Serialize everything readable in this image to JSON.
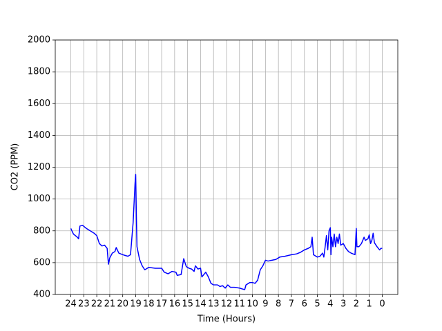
{
  "chart_data": {
    "type": "line",
    "x_label": "Time (Hours)",
    "y_label": "CO2 (PPM)",
    "xlim": [
      25.2,
      -1.2
    ],
    "ylim": [
      400,
      2000
    ],
    "xticks": [
      24,
      23,
      22,
      21,
      20,
      19,
      18,
      17,
      16,
      15,
      14,
      13,
      12,
      11,
      10,
      9,
      8,
      7,
      6,
      5,
      4,
      3,
      2,
      1,
      0
    ],
    "yticks": [
      400,
      600,
      800,
      1000,
      1200,
      1400,
      1600,
      1800,
      2000
    ],
    "grid": true,
    "series": [
      {
        "color": "#0000ff",
        "x": [
          24,
          23.8,
          23.5,
          23.4,
          23.3,
          23.1,
          22.8,
          22.5,
          22.2,
          22.0,
          21.8,
          21.6,
          21.4,
          21.2,
          21.1,
          21.0,
          20.8,
          20.6,
          20.5,
          20.3,
          20.0,
          19.8,
          19.6,
          19.4,
          19.3,
          19.2,
          19.05,
          19.0,
          18.95,
          18.9,
          18.7,
          18.5,
          18.3,
          18.0,
          17.5,
          17.0,
          16.8,
          16.5,
          16.2,
          15.9,
          15.8,
          15.5,
          15.3,
          15.1,
          14.9,
          14.7,
          14.5,
          14.4,
          14.2,
          14.0,
          13.9,
          13.6,
          13.4,
          13.2,
          13.0,
          12.7,
          12.5,
          12.3,
          12.1,
          11.9,
          11.7,
          11.4,
          11.0,
          10.6,
          10.5,
          10.2,
          10.0,
          9.8,
          9.6,
          9.4,
          9.2,
          9.0,
          8.8,
          8.5,
          8.2,
          7.9,
          7.5,
          7.0,
          6.6,
          6.3,
          6.0,
          5.7,
          5.5,
          5.4,
          5.3,
          5.0,
          4.8,
          4.6,
          4.5,
          4.4,
          4.3,
          4.2,
          4.1,
          4.0,
          3.95,
          3.9,
          3.8,
          3.7,
          3.6,
          3.5,
          3.4,
          3.3,
          3.2,
          3.0,
          2.8,
          2.6,
          2.4,
          2.1,
          2.0,
          1.95,
          1.8,
          1.6,
          1.4,
          1.3,
          1.1,
          1.0,
          0.9,
          0.8,
          0.7,
          0.6,
          0.4,
          0.2,
          0.1,
          0.0
        ],
        "values": [
          815,
          780,
          760,
          750,
          830,
          835,
          815,
          800,
          785,
          770,
          720,
          705,
          710,
          690,
          590,
          630,
          660,
          670,
          695,
          660,
          650,
          645,
          640,
          650,
          750,
          850,
          1100,
          1155,
          900,
          700,
          620,
          580,
          555,
          570,
          565,
          565,
          540,
          530,
          545,
          540,
          520,
          525,
          625,
          575,
          565,
          560,
          545,
          580,
          560,
          565,
          510,
          540,
          510,
          470,
          460,
          460,
          450,
          455,
          440,
          460,
          445,
          445,
          440,
          430,
          460,
          475,
          475,
          470,
          490,
          555,
          580,
          615,
          610,
          615,
          620,
          635,
          640,
          650,
          655,
          665,
          680,
          690,
          700,
          760,
          650,
          635,
          640,
          660,
          635,
          700,
          770,
          680,
          800,
          820,
          650,
          760,
          700,
          780,
          700,
          760,
          720,
          780,
          710,
          720,
          690,
          670,
          660,
          650,
          815,
          700,
          700,
          720,
          760,
          740,
          750,
          775,
          720,
          740,
          785,
          725,
          700,
          680,
          690,
          690
        ]
      }
    ]
  }
}
